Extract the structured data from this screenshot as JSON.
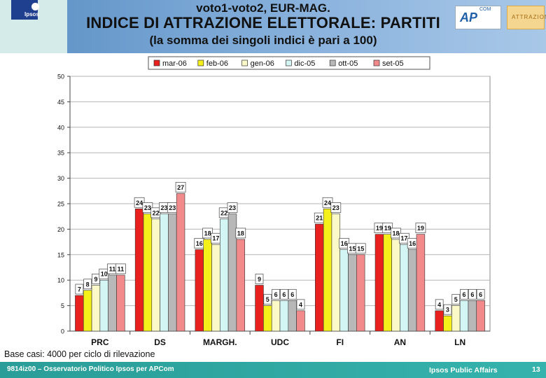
{
  "header": {
    "title_line1": "voto1-voto2, EUR-MAG.",
    "title_line2": "INDICE DI ATTRAZIONE ELETTORALE: PARTITI",
    "title_line3": "(la somma dei singoli indici è pari a 100)",
    "logo_label": "Ipsos",
    "partner_logo_text": "AP",
    "partner_logo_sup": "COM",
    "partner2_logo_text": "ATTRAZIONE"
  },
  "chart_data": {
    "type": "bar",
    "categories": [
      "PRC",
      "DS",
      "MARGH.",
      "UDC",
      "FI",
      "AN",
      "LN"
    ],
    "series": [
      {
        "name": "mar-06",
        "color": "#e8201e",
        "values": [
          7,
          24,
          16,
          9,
          21,
          19,
          4
        ]
      },
      {
        "name": "feb-06",
        "color": "#f5ef1a",
        "values": [
          8,
          23,
          18,
          5,
          24,
          19,
          3
        ]
      },
      {
        "name": "gen-06",
        "color": "#fbf9c8",
        "values": [
          9,
          22,
          17,
          6,
          23,
          18,
          5
        ]
      },
      {
        "name": "dic-05",
        "color": "#d3f5f4",
        "values": [
          10,
          23,
          22,
          6,
          16,
          17,
          6
        ]
      },
      {
        "name": "ott-05",
        "color": "#b8b8b8",
        "values": [
          11,
          23,
          23,
          6,
          15,
          16,
          6
        ]
      },
      {
        "name": "set-05",
        "color": "#f2898a",
        "values": [
          11,
          27,
          18,
          4,
          15,
          19,
          6
        ]
      }
    ],
    "ylim": [
      0,
      50
    ],
    "yticks": [
      0,
      5,
      10,
      15,
      20,
      25,
      30,
      35,
      40,
      45,
      50
    ],
    "grid": true,
    "legend_position": "top-center",
    "data_labels": true
  },
  "note": "Base casi: 4000 per ciclo di rilevazione",
  "footer": {
    "left": "9814iz00 – Osservatorio Politico Ipsos per APCom",
    "middle": "Ipsos Public Affairs",
    "page": "13"
  }
}
